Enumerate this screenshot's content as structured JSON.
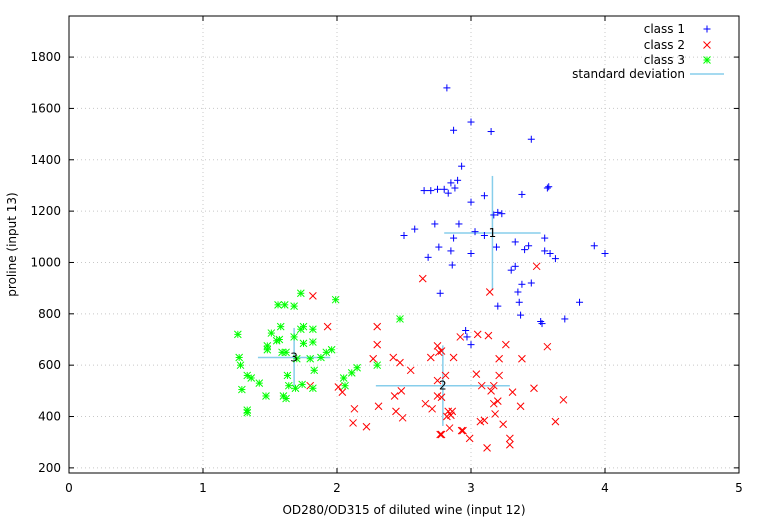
{
  "chart_data": {
    "type": "scatter",
    "title": "",
    "xlabel": "OD280/OD315 of diluted wine (input 12)",
    "ylabel": "proline (input 13)",
    "xlim": [
      0,
      5
    ],
    "ylim": [
      180,
      1960
    ],
    "xticks": [
      0,
      1,
      2,
      3,
      4,
      5
    ],
    "yticks": [
      200,
      400,
      600,
      800,
      1000,
      1200,
      1400,
      1600,
      1800
    ],
    "grid": true,
    "legend_position": "top-right",
    "series": [
      {
        "name": "class 1",
        "marker": "plus",
        "color": "#0000ff",
        "points": [
          [
            2.82,
            1680
          ],
          [
            3.0,
            1547
          ],
          [
            2.87,
            1515
          ],
          [
            3.15,
            1510
          ],
          [
            3.45,
            1480
          ],
          [
            2.93,
            1375
          ],
          [
            2.9,
            1320
          ],
          [
            2.85,
            1310
          ],
          [
            2.88,
            1290
          ],
          [
            2.8,
            1285
          ],
          [
            2.75,
            1285
          ],
          [
            2.7,
            1280
          ],
          [
            2.65,
            1280
          ],
          [
            2.83,
            1270
          ],
          [
            3.58,
            1295
          ],
          [
            3.57,
            1290
          ],
          [
            3.38,
            1265
          ],
          [
            3.1,
            1260
          ],
          [
            3.0,
            1235
          ],
          [
            3.2,
            1195
          ],
          [
            3.23,
            1190
          ],
          [
            3.17,
            1185
          ],
          [
            2.91,
            1150
          ],
          [
            2.73,
            1150
          ],
          [
            2.58,
            1130
          ],
          [
            3.03,
            1120
          ],
          [
            2.87,
            1095
          ],
          [
            2.5,
            1105
          ],
          [
            3.55,
            1095
          ],
          [
            3.1,
            1105
          ],
          [
            3.33,
            1080
          ],
          [
            3.19,
            1060
          ],
          [
            2.76,
            1060
          ],
          [
            3.43,
            1065
          ],
          [
            3.4,
            1050
          ],
          [
            2.85,
            1045
          ],
          [
            3.55,
            1045
          ],
          [
            3.59,
            1035
          ],
          [
            4.0,
            1035
          ],
          [
            3.92,
            1065
          ],
          [
            3.0,
            1035
          ],
          [
            3.63,
            1015
          ],
          [
            2.68,
            1020
          ],
          [
            3.33,
            985
          ],
          [
            3.3,
            970
          ],
          [
            2.86,
            990
          ],
          [
            3.38,
            915
          ],
          [
            3.45,
            920
          ],
          [
            3.35,
            885
          ],
          [
            3.36,
            845
          ],
          [
            3.81,
            845
          ],
          [
            3.2,
            830
          ],
          [
            3.37,
            795
          ],
          [
            3.7,
            780
          ],
          [
            3.52,
            770
          ],
          [
            3.53,
            762
          ],
          [
            2.77,
            880
          ],
          [
            2.96,
            735
          ],
          [
            2.97,
            710
          ],
          [
            3.0,
            680
          ]
        ]
      },
      {
        "name": "class 2",
        "marker": "x",
        "color": "#ff0000",
        "points": [
          [
            1.82,
            870
          ],
          [
            2.64,
            937
          ],
          [
            3.14,
            885
          ],
          [
            3.49,
            985
          ],
          [
            1.93,
            750
          ],
          [
            2.3,
            750
          ],
          [
            3.05,
            720
          ],
          [
            3.13,
            715
          ],
          [
            2.92,
            710
          ],
          [
            3.26,
            680
          ],
          [
            2.75,
            675
          ],
          [
            2.3,
            680
          ],
          [
            3.57,
            672
          ],
          [
            2.78,
            655
          ],
          [
            2.76,
            650
          ],
          [
            2.42,
            630
          ],
          [
            2.27,
            625
          ],
          [
            2.7,
            630
          ],
          [
            3.38,
            625
          ],
          [
            2.87,
            630
          ],
          [
            3.21,
            625
          ],
          [
            2.47,
            610
          ],
          [
            2.55,
            580
          ],
          [
            3.21,
            560
          ],
          [
            2.81,
            560
          ],
          [
            2.75,
            540
          ],
          [
            3.04,
            565
          ],
          [
            3.17,
            520
          ],
          [
            3.08,
            520
          ],
          [
            2.01,
            515
          ],
          [
            2.04,
            495
          ],
          [
            1.8,
            520
          ],
          [
            3.15,
            500
          ],
          [
            3.47,
            510
          ],
          [
            2.78,
            475
          ],
          [
            3.31,
            495
          ],
          [
            2.43,
            480
          ],
          [
            2.75,
            480
          ],
          [
            2.48,
            500
          ],
          [
            3.2,
            460
          ],
          [
            3.17,
            450
          ],
          [
            2.13,
            430
          ],
          [
            2.31,
            440
          ],
          [
            3.37,
            440
          ],
          [
            2.44,
            420
          ],
          [
            2.71,
            430
          ],
          [
            2.66,
            450
          ],
          [
            2.86,
            420
          ],
          [
            2.83,
            420
          ],
          [
            2.85,
            405
          ],
          [
            3.18,
            410
          ],
          [
            3.24,
            370
          ],
          [
            3.1,
            385
          ],
          [
            3.07,
            380
          ],
          [
            2.49,
            395
          ],
          [
            2.82,
            400
          ],
          [
            3.69,
            465
          ],
          [
            3.63,
            380
          ],
          [
            2.12,
            375
          ],
          [
            2.22,
            360
          ],
          [
            2.84,
            355
          ],
          [
            2.93,
            345
          ],
          [
            2.94,
            345
          ],
          [
            2.77,
            330
          ],
          [
            2.78,
            330
          ],
          [
            2.99,
            315
          ],
          [
            3.29,
            315
          ],
          [
            3.29,
            290
          ],
          [
            3.12,
            278
          ]
        ]
      },
      {
        "name": "class 3",
        "marker": "star",
        "color": "#00ff00",
        "points": [
          [
            1.99,
            855
          ],
          [
            1.73,
            880
          ],
          [
            1.56,
            835
          ],
          [
            1.61,
            835
          ],
          [
            1.68,
            830
          ],
          [
            2.47,
            780
          ],
          [
            1.75,
            750
          ],
          [
            1.58,
            750
          ],
          [
            1.82,
            740
          ],
          [
            1.51,
            725
          ],
          [
            1.73,
            740
          ],
          [
            1.26,
            720
          ],
          [
            1.68,
            710
          ],
          [
            1.57,
            700
          ],
          [
            1.55,
            695
          ],
          [
            1.82,
            690
          ],
          [
            1.48,
            675
          ],
          [
            1.75,
            685
          ],
          [
            1.48,
            660
          ],
          [
            1.59,
            650
          ],
          [
            1.96,
            660
          ],
          [
            1.92,
            650
          ],
          [
            1.62,
            650
          ],
          [
            1.27,
            630
          ],
          [
            1.8,
            625
          ],
          [
            1.88,
            630
          ],
          [
            1.7,
            625
          ],
          [
            2.3,
            600
          ],
          [
            2.15,
            590
          ],
          [
            1.28,
            600
          ],
          [
            1.83,
            580
          ],
          [
            1.63,
            560
          ],
          [
            1.33,
            560
          ],
          [
            2.11,
            570
          ],
          [
            2.05,
            550
          ],
          [
            1.36,
            550
          ],
          [
            1.42,
            530
          ],
          [
            1.74,
            525
          ],
          [
            2.06,
            520
          ],
          [
            1.64,
            520
          ],
          [
            1.82,
            510
          ],
          [
            1.29,
            505
          ],
          [
            1.69,
            510
          ],
          [
            1.6,
            480
          ],
          [
            1.62,
            470
          ],
          [
            1.47,
            480
          ],
          [
            1.33,
            425
          ],
          [
            1.33,
            415
          ]
        ]
      }
    ],
    "centers": [
      {
        "label": "1",
        "x": 3.16,
        "y": 1115,
        "sx": 0.36,
        "sy": 222
      },
      {
        "label": "2",
        "x": 2.79,
        "y": 520,
        "sx": 0.5,
        "sy": 157
      },
      {
        "label": "3",
        "x": 1.68,
        "y": 630,
        "sx": 0.27,
        "sy": 115
      }
    ],
    "std_color": "#87ceeb",
    "legend": [
      {
        "label": "class 1",
        "marker": "plus",
        "color": "#0000ff"
      },
      {
        "label": "class 2",
        "marker": "x",
        "color": "#ff0000"
      },
      {
        "label": "class 3",
        "marker": "star",
        "color": "#00ff00"
      },
      {
        "label": "standard deviation",
        "marker": "line",
        "color": "#87ceeb"
      }
    ]
  }
}
